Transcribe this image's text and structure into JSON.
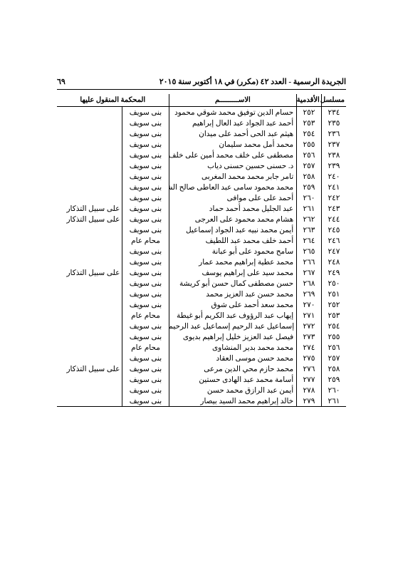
{
  "header": {
    "title": "الجريدة الرسمية - العدد ٤٢ (مكرر) في ١٨ أكتوبر سنة ٢٠١٥",
    "page_number": "٦٩"
  },
  "columns": {
    "serial": "مسلسل",
    "seniority": "الأقدمية",
    "name": "الاســـــــــم",
    "court": "المحكمة المنقول عليها",
    "notes": ""
  },
  "style": {
    "bg": "#ffffff",
    "text_color": "#000000",
    "border_color": "#000000",
    "font_size_body": 10.5,
    "font_size_header": 11
  },
  "rows": [
    {
      "serial": "٢٣٤",
      "seniority": "٢٥٢",
      "name": "حسام الدين توفيق محمد شوقي محمود",
      "court": "بنى سويف",
      "notes": ""
    },
    {
      "serial": "٢٣٥",
      "seniority": "٢٥٣",
      "name": "أحمد عبد الجواد عبد العال إبراهيم",
      "court": "بنى سويف",
      "notes": ""
    },
    {
      "serial": "٢٣٦",
      "seniority": "٢٥٤",
      "name": "هيثم عبد الحى أحمد على ميدان",
      "court": "بنى سويف",
      "notes": ""
    },
    {
      "serial": "٢٣٧",
      "seniority": "٢٥٥",
      "name": "محمد أمل محمد سليمان",
      "court": "بنى سويف",
      "notes": ""
    },
    {
      "serial": "٢٣٨",
      "seniority": "٢٥٦",
      "name": "مصطفى على خلف محمد أمين على خلف",
      "court": "بنى سويف",
      "notes": ""
    },
    {
      "serial": "٢٣٩",
      "seniority": "٢٥٧",
      "name": "د. حسنى حسين حسنى دياب",
      "court": "بنى سويف",
      "notes": ""
    },
    {
      "serial": "٢٤٠",
      "seniority": "٢٥٨",
      "name": "تامر جابر محمد محمد المغربى",
      "court": "بنى سويف",
      "notes": ""
    },
    {
      "serial": "٢٤١",
      "seniority": "٢٥٩",
      "name": "محمد محمود سامى عبد العاطى صالح الشرقاوى",
      "court": "بنى سويف",
      "notes": ""
    },
    {
      "serial": "٢٤٢",
      "seniority": "٢٦٠",
      "name": "أحمد على على موافى",
      "court": "بنى سويف",
      "notes": ""
    },
    {
      "serial": "٢٤٣",
      "seniority": "٢٦١",
      "name": "عبد الجليل محمد أحمد حماد",
      "court": "بنى سويف",
      "notes": "على سبيل التذكار"
    },
    {
      "serial": "٢٤٤",
      "seniority": "٢٦٢",
      "name": "هشام محمد محمود على العرجى",
      "court": "بنى سويف",
      "notes": "على سبيل التذكار"
    },
    {
      "serial": "٢٤٥",
      "seniority": "٢٦٣",
      "name": "أيمن محمد نبيه عبد الجواد إسماعيل",
      "court": "بنى سويف",
      "notes": ""
    },
    {
      "serial": "٢٤٦",
      "seniority": "٢٦٤",
      "name": "أحمد خلف محمد عبد اللطيف",
      "court": "محام عام",
      "notes": ""
    },
    {
      "serial": "٢٤٧",
      "seniority": "٢٦٥",
      "name": "سامح محمود على أبو عبانة",
      "court": "بنى سويف",
      "notes": ""
    },
    {
      "serial": "٢٤٨",
      "seniority": "٢٦٦",
      "name": "محمد عطية إبراهيم محمد عمار",
      "court": "بنى سويف",
      "notes": ""
    },
    {
      "serial": "٢٤٩",
      "seniority": "٢٦٧",
      "name": "محمد سيد على إبراهيم يوسف",
      "court": "بنى سويف",
      "notes": "على سبيل التذكار"
    },
    {
      "serial": "٢٥٠",
      "seniority": "٢٦٨",
      "name": "حسن مصطفى كمال حسن أبو كريشة",
      "court": "بنى سويف",
      "notes": ""
    },
    {
      "serial": "٢٥١",
      "seniority": "٢٦٩",
      "name": "محمد حسن عبد العزيز محمد",
      "court": "بنى سويف",
      "notes": ""
    },
    {
      "serial": "٢٥٢",
      "seniority": "٢٧٠",
      "name": "محمد سعد أحمد على شوق",
      "court": "بنى سويف",
      "notes": ""
    },
    {
      "serial": "٢٥٣",
      "seniority": "٢٧١",
      "name": "إيهاب عبد الرؤوف عبد الكريم أبو غيطة",
      "court": "محام عام",
      "notes": ""
    },
    {
      "serial": "٢٥٤",
      "seniority": "٢٧٢",
      "name": "إسماعيل عبد الرحيم إسماعيل عبد الرحيم",
      "court": "بنى سويف",
      "notes": ""
    },
    {
      "serial": "٢٥٥",
      "seniority": "٢٧٣",
      "name": "فيصل عبد العزيز خليل إبراهيم بديوى",
      "court": "بنى سويف",
      "notes": ""
    },
    {
      "serial": "٢٥٦",
      "seniority": "٢٧٤",
      "name": "محمد محمد بدير المنشاوى",
      "court": "محام عام",
      "notes": ""
    },
    {
      "serial": "٢٥٧",
      "seniority": "٢٧٥",
      "name": "محمد حسن موسى العقاد",
      "court": "بنى سويف",
      "notes": ""
    },
    {
      "serial": "٢٥٨",
      "seniority": "٢٧٦",
      "name": "محمد حازم محي الدين مرعى",
      "court": "بنى سويف",
      "notes": "على سبيل التذكار"
    },
    {
      "serial": "٢٥٩",
      "seniority": "٢٧٧",
      "name": "أسامة محمد عبد الهادى حستين",
      "court": "بنى سويف",
      "notes": ""
    },
    {
      "serial": "٢٦٠",
      "seniority": "٢٧٨",
      "name": "أيمن عبد الرازق محمد حسن",
      "court": "بنى سويف",
      "notes": ""
    },
    {
      "serial": "٢٦١",
      "seniority": "٢٧٩",
      "name": "خالد إبراهيم محمد السيد بيصار",
      "court": "بنى سويف",
      "notes": ""
    }
  ]
}
